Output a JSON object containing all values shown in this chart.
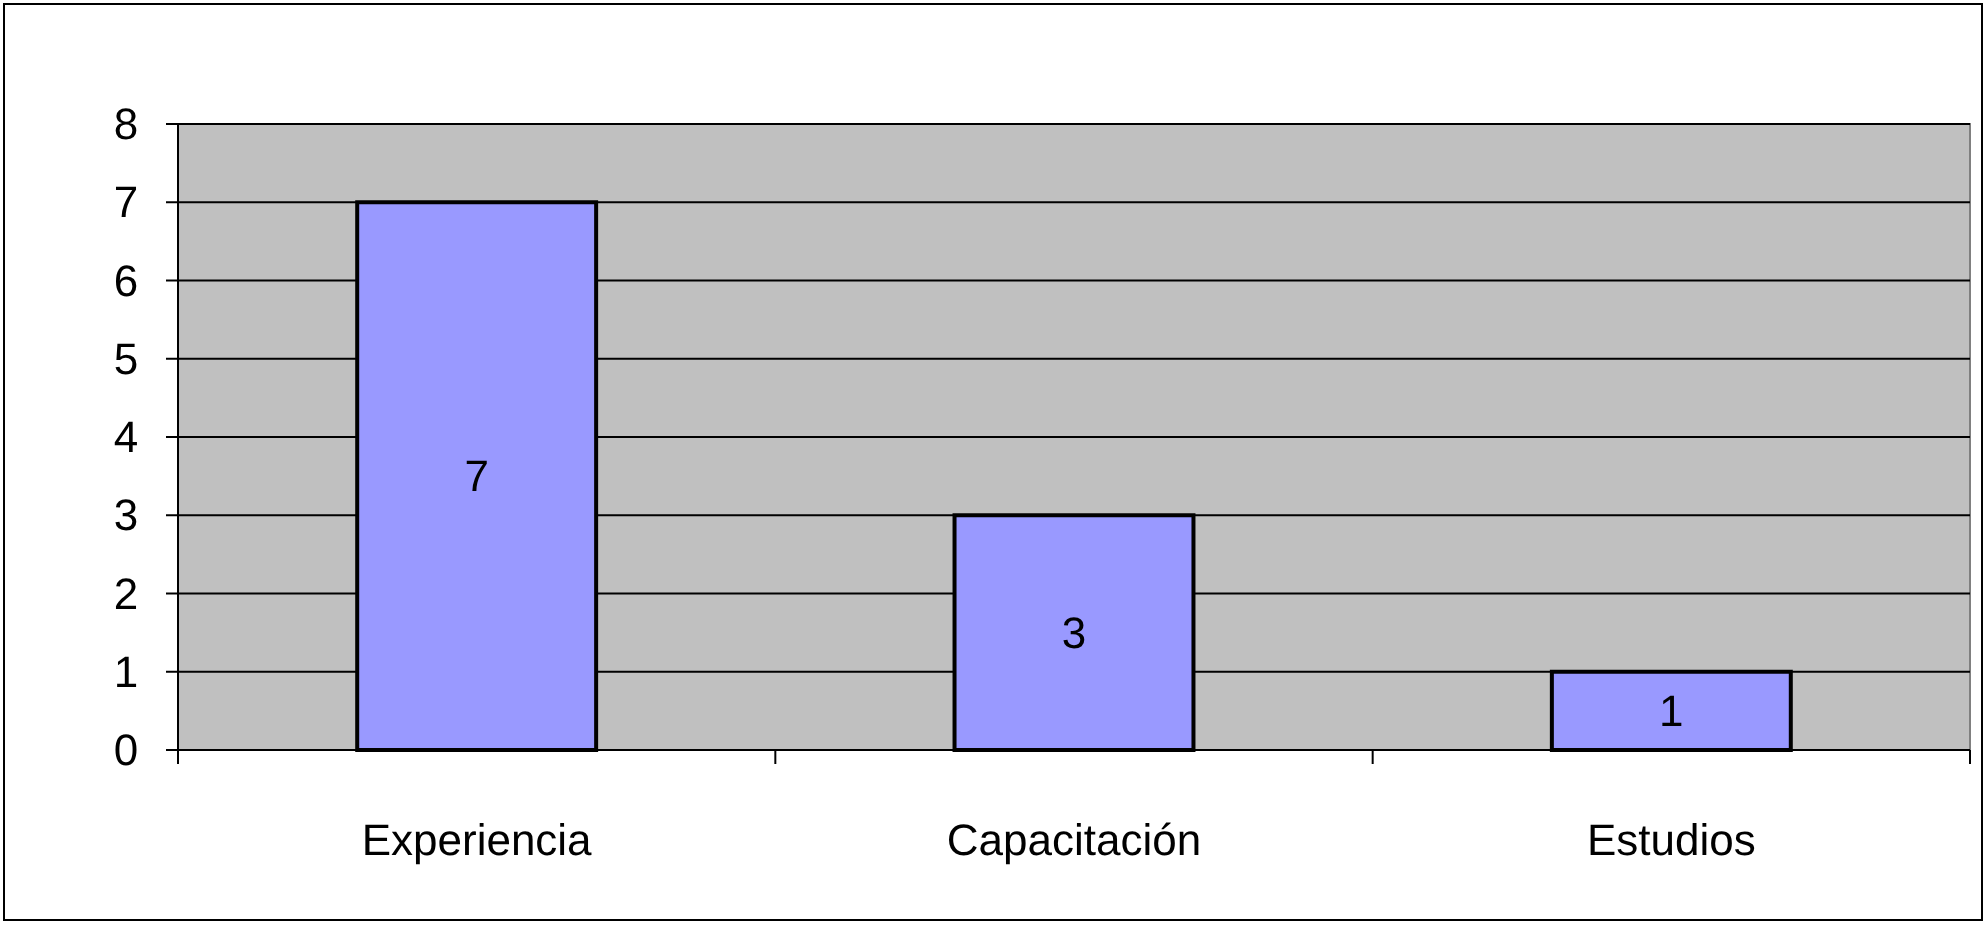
{
  "chart_data": {
    "type": "bar",
    "categories": [
      "Experiencia",
      "Capacitación",
      "Estudios"
    ],
    "values": [
      7,
      3,
      1
    ],
    "color": "#9999ff",
    "ylim": [
      0,
      8
    ],
    "yticks": [
      0,
      1,
      2,
      3,
      4,
      5,
      6,
      7,
      8
    ],
    "grid": "y",
    "data_labels": true
  }
}
